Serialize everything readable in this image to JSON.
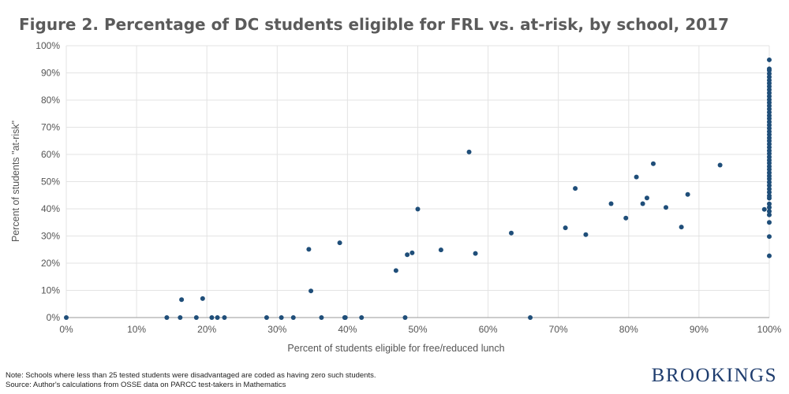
{
  "brand": {
    "name": "BROOKINGS",
    "color": "#1f3d6e"
  },
  "notes": {
    "line1": "Note: Schools where less than 25 tested students were disadvantaged are coded as having zero such students.",
    "line2": "Source: Author's calculations from OSSE data on PARCC test-takers in Mathematics"
  },
  "chart_data": {
    "type": "scatter",
    "title": "Figure 2. Percentage of DC students eligible for FRL vs. at-risk, by school, 2017",
    "xlabel": "Percent of students eligible for free/reduced lunch",
    "ylabel": "Percent of students \"at-risk\"",
    "xlim": [
      0,
      100
    ],
    "ylim": [
      0,
      100
    ],
    "x_ticks": [
      "0%",
      "10%",
      "20%",
      "30%",
      "40%",
      "50%",
      "60%",
      "70%",
      "80%",
      "90%",
      "100%"
    ],
    "y_ticks": [
      "0%",
      "10%",
      "20%",
      "30%",
      "40%",
      "50%",
      "60%",
      "70%",
      "80%",
      "90%",
      "100%"
    ],
    "grid": true,
    "marker_color": "#1f4e79",
    "points": [
      [
        0,
        0
      ],
      [
        14.3,
        0
      ],
      [
        16.2,
        0
      ],
      [
        16.4,
        6.6
      ],
      [
        18.5,
        0
      ],
      [
        19.4,
        7.0
      ],
      [
        20.7,
        0
      ],
      [
        21.5,
        0
      ],
      [
        22.5,
        0
      ],
      [
        28.5,
        0
      ],
      [
        30.6,
        0
      ],
      [
        32.3,
        0
      ],
      [
        34.5,
        25.1
      ],
      [
        34.8,
        9.8
      ],
      [
        36.3,
        0
      ],
      [
        38.9,
        27.5
      ],
      [
        39.6,
        0
      ],
      [
        39.7,
        0
      ],
      [
        42.0,
        0
      ],
      [
        46.9,
        17.3
      ],
      [
        48.2,
        0
      ],
      [
        48.5,
        23.1
      ],
      [
        49.2,
        23.8
      ],
      [
        50.0,
        39.9
      ],
      [
        53.3,
        24.9
      ],
      [
        57.3,
        60.9
      ],
      [
        58.2,
        23.6
      ],
      [
        63.3,
        31.1
      ],
      [
        66.0,
        0
      ],
      [
        71.0,
        33.0
      ],
      [
        72.4,
        47.5
      ],
      [
        73.9,
        30.5
      ],
      [
        77.5,
        41.9
      ],
      [
        79.6,
        36.6
      ],
      [
        81.1,
        51.7
      ],
      [
        82.0,
        41.9
      ],
      [
        82.6,
        44.0
      ],
      [
        83.5,
        56.6
      ],
      [
        85.3,
        40.5
      ],
      [
        87.5,
        33.3
      ],
      [
        88.4,
        45.3
      ],
      [
        93.0,
        56.1
      ],
      [
        99.3,
        39.8
      ],
      [
        100,
        22.7
      ],
      [
        100,
        29.8
      ],
      [
        100,
        35.0
      ],
      [
        100,
        37.8
      ],
      [
        100,
        39.1
      ],
      [
        100,
        40.5
      ],
      [
        100,
        41.8
      ],
      [
        100,
        43.9
      ],
      [
        100,
        44.8
      ],
      [
        100,
        46.1
      ],
      [
        100,
        47.3
      ],
      [
        100,
        48.6
      ],
      [
        100,
        49.8
      ],
      [
        100,
        51.0
      ],
      [
        100,
        52.1
      ],
      [
        100,
        53.3
      ],
      [
        100,
        54.5
      ],
      [
        100,
        55.6
      ],
      [
        100,
        56.8
      ],
      [
        100,
        57.9
      ],
      [
        100,
        59.1
      ],
      [
        100,
        60.3
      ],
      [
        100,
        61.4
      ],
      [
        100,
        62.6
      ],
      [
        100,
        63.8
      ],
      [
        100,
        65.0
      ],
      [
        100,
        66.1
      ],
      [
        100,
        67.3
      ],
      [
        100,
        68.4
      ],
      [
        100,
        69.6
      ],
      [
        100,
        70.8
      ],
      [
        100,
        72.0
      ],
      [
        100,
        73.2
      ],
      [
        100,
        74.3
      ],
      [
        100,
        75.5
      ],
      [
        100,
        76.7
      ],
      [
        100,
        77.9
      ],
      [
        100,
        79.1
      ],
      [
        100,
        80.2
      ],
      [
        100,
        81.4
      ],
      [
        100,
        82.6
      ],
      [
        100,
        83.8
      ],
      [
        100,
        85.0
      ],
      [
        100,
        86.2
      ],
      [
        100,
        87.3
      ],
      [
        100,
        88.5
      ],
      [
        100,
        89.7
      ],
      [
        100,
        90.9
      ],
      [
        100,
        91.5
      ],
      [
        100,
        94.8
      ]
    ]
  }
}
